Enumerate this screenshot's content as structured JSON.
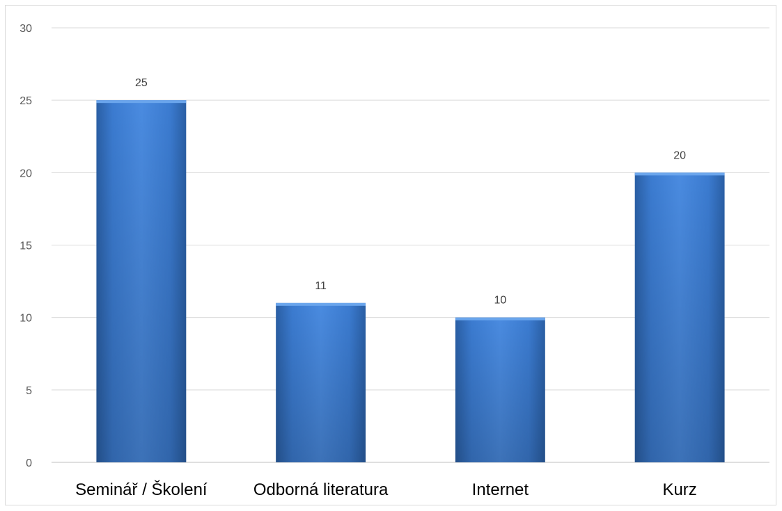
{
  "chart_data": {
    "type": "bar",
    "title": "",
    "xlabel": "",
    "ylabel": "",
    "categories": [
      "Seminář / Školení",
      "Odborná literatura",
      "Internet",
      "Kurz"
    ],
    "values": [
      25,
      11,
      10,
      20
    ],
    "ylim": [
      0,
      30
    ],
    "yticks": [
      0,
      5,
      10,
      15,
      20,
      25,
      30
    ],
    "grid": true,
    "legend": "none",
    "data_labels": true,
    "bar_color": "#3c7fd0"
  }
}
